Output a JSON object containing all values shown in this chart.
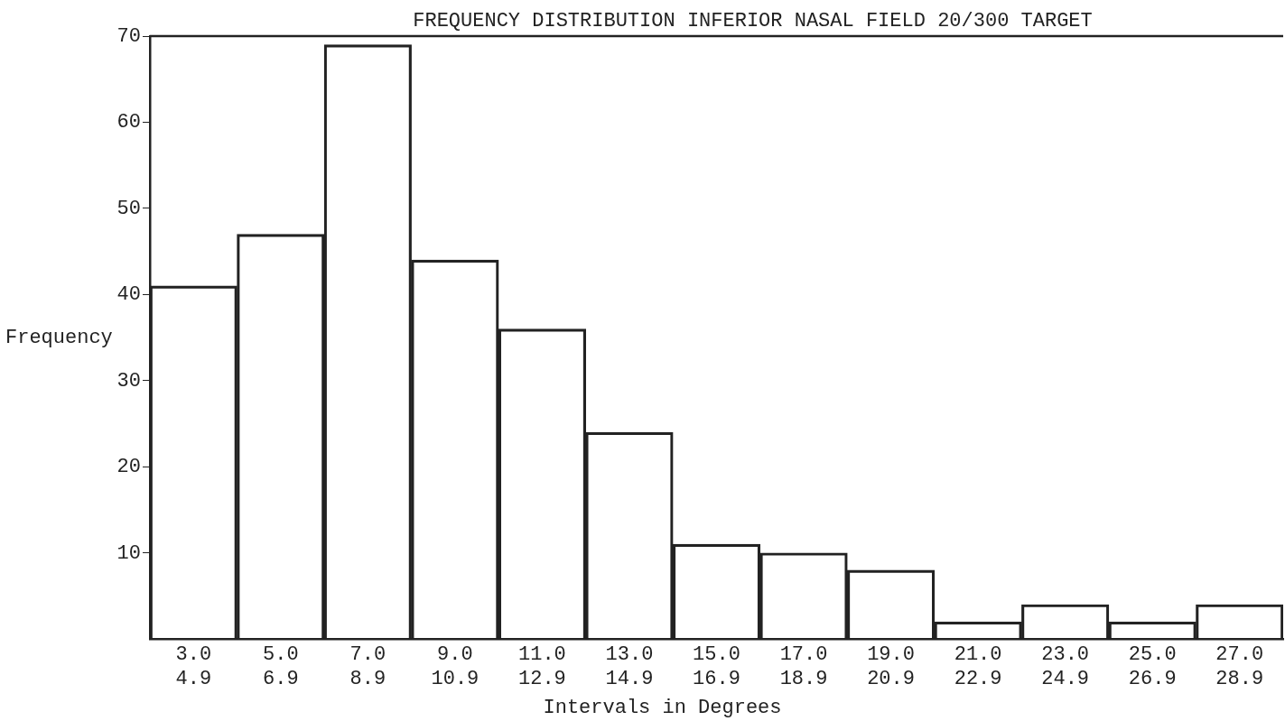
{
  "chart_data": {
    "type": "bar",
    "title": "FREQUENCY DISTRIBUTION INFERIOR NASAL FIELD 20/300 TARGET",
    "xlabel": "Intervals in Degrees",
    "ylabel": "Frequency",
    "categories": [
      "3.0\n4.9",
      "5.0\n6.9",
      "7.0\n8.9",
      "9.0\n10.9",
      "11.0\n12.9",
      "13.0\n14.9",
      "15.0\n16.9",
      "17.0\n18.9",
      "19.0\n20.9",
      "21.0\n22.9",
      "23.0\n24.9",
      "25.0\n26.9",
      "27.0\n28.9"
    ],
    "values": [
      41,
      47,
      69,
      44,
      36,
      24,
      11,
      10,
      8,
      2,
      4,
      2,
      4
    ],
    "color": "#222222",
    "ylim": [
      0,
      70
    ],
    "yticks": [
      10,
      20,
      30,
      40,
      50,
      60,
      70
    ],
    "grid": false,
    "legend": false
  }
}
